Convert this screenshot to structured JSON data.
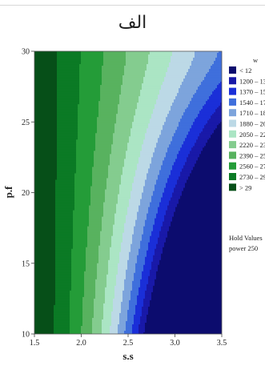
{
  "panel_label": "الف",
  "chart_data": {
    "type": "contour",
    "xlabel": "s.s",
    "ylabel": "p.f",
    "xlim": [
      1.5,
      3.5
    ],
    "ylim": [
      10,
      30
    ],
    "xticks": [
      "1.5",
      "2.0",
      "2.5",
      "3.0",
      "3.5"
    ],
    "yticks": [
      "10",
      "15",
      "20",
      "25",
      "30"
    ],
    "legend_title": "w",
    "legend_position": "right",
    "levels": [
      {
        "label": "< 12",
        "color": "#0c0c6e"
      },
      {
        "label": "1200 – 13",
        "color": "#1919a8"
      },
      {
        "label": "1370 – 15",
        "color": "#1a2fd8"
      },
      {
        "label": "1540 – 17",
        "color": "#3f6fdc"
      },
      {
        "label": "1710 – 18",
        "color": "#7da4dc"
      },
      {
        "label": "1880 – 20",
        "color": "#bcd9e6"
      },
      {
        "label": "2050 – 22",
        "color": "#abe5c4"
      },
      {
        "label": "2220 – 23",
        "color": "#84cc8f"
      },
      {
        "label": "2390 – 25",
        "color": "#58b25f"
      },
      {
        "label": "2560 – 27",
        "color": "#249c38"
      },
      {
        "label": "2730 – 29",
        "color": "#0b7a25"
      },
      {
        "label": "> 29",
        "color": "#064f18"
      }
    ],
    "hold_values_title": "Hold Values",
    "hold_values": [
      {
        "name": "power",
        "value": "250"
      }
    ]
  }
}
